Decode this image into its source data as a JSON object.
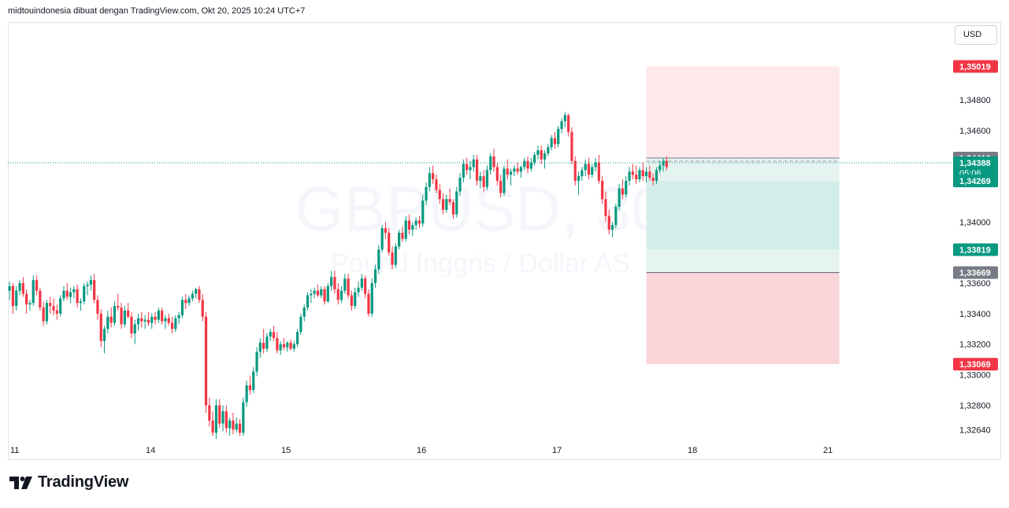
{
  "header": {
    "text": "midtouindonesia dibuat dengan TradingView.com, Okt 20, 2025 10:24 UTC+7"
  },
  "toolbar": {
    "currency": "USD"
  },
  "footer": {
    "brand": "TradingView"
  },
  "watermark": {
    "symbol": "GBPUSD, 30",
    "description": "Pound Inggris / Dollar AS"
  },
  "colors": {
    "up": "#089981",
    "down": "#f23645",
    "profit_zone": "#d3ede8",
    "profit_zone_light": "#e6f4f1",
    "loss_zone": "#fde9ea",
    "loss_zone_strong": "#fad5d9",
    "grid_text": "#131722",
    "label_gray": "#787b86"
  },
  "price_axis": {
    "ticks": [
      {
        "label": "1,34800",
        "value": 1.348
      },
      {
        "label": "1,34600",
        "value": 1.346
      },
      {
        "label": "1,34000",
        "value": 1.34
      },
      {
        "label": "1,33600",
        "value": 1.336
      },
      {
        "label": "1,33400",
        "value": 1.334
      },
      {
        "label": "1,33200",
        "value": 1.332
      },
      {
        "label": "1,33000",
        "value": 1.33
      },
      {
        "label": "1,32800",
        "value": 1.328
      },
      {
        "label": "1,32640",
        "value": 1.3264
      }
    ],
    "labels": [
      {
        "text": "1,35019",
        "value": 1.35019,
        "color": "#f23645"
      },
      {
        "text": "1,34419",
        "value": 1.34419,
        "color": "#787b86"
      },
      {
        "text": "1,34388",
        "value": 1.34388,
        "color": "#089981",
        "sub": "05:06"
      },
      {
        "text": "1,34269",
        "value": 1.34269,
        "color": "#089981"
      },
      {
        "text": "1,33819",
        "value": 1.33819,
        "color": "#089981"
      },
      {
        "text": "1,33669",
        "value": 1.33669,
        "color": "#787b86"
      },
      {
        "text": "1,33069",
        "value": 1.33069,
        "color": "#f23645"
      }
    ]
  },
  "time_axis": {
    "ticks": [
      {
        "label": "11",
        "bar": 0
      },
      {
        "label": "14",
        "bar": 40
      },
      {
        "label": "15",
        "bar": 80
      },
      {
        "label": "16",
        "bar": 120
      },
      {
        "label": "17",
        "bar": 160
      },
      {
        "label": "18",
        "bar": 200
      },
      {
        "label": "21",
        "bar": 240
      }
    ]
  },
  "chart_data": {
    "type": "candlestick",
    "symbol": "GBPUSD",
    "timeframe": "30",
    "ylim": [
      1.3257,
      1.3531
    ],
    "current_price": 1.34388,
    "position_tool": {
      "entry": 1.34419,
      "stop_loss": 1.33669,
      "target": 1.34269,
      "upper": 1.35019,
      "lower": 1.33069,
      "secondary": 1.33819,
      "start_bar": 188,
      "end_bar": 245
    },
    "candles": [
      [
        1.3355,
        1.3361,
        1.3349,
        1.3358
      ],
      [
        1.3358,
        1.336,
        1.334,
        1.3345
      ],
      [
        1.3345,
        1.3358,
        1.3342,
        1.3355
      ],
      [
        1.3355,
        1.3362,
        1.3352,
        1.336
      ],
      [
        1.336,
        1.3364,
        1.3351,
        1.3353
      ],
      [
        1.3353,
        1.3356,
        1.334,
        1.3346
      ],
      [
        1.3346,
        1.3349,
        1.3342,
        1.3347
      ],
      [
        1.3347,
        1.3365,
        1.3345,
        1.3362
      ],
      [
        1.3362,
        1.3365,
        1.3352,
        1.3355
      ],
      [
        1.3355,
        1.3357,
        1.3342,
        1.3344
      ],
      [
        1.3344,
        1.3348,
        1.3332,
        1.3335
      ],
      [
        1.3335,
        1.3349,
        1.3333,
        1.3347
      ],
      [
        1.3347,
        1.3351,
        1.334,
        1.3345
      ],
      [
        1.3345,
        1.335,
        1.3339,
        1.3342
      ],
      [
        1.3342,
        1.3346,
        1.3336,
        1.334
      ],
      [
        1.334,
        1.3352,
        1.3338,
        1.335
      ],
      [
        1.335,
        1.3358,
        1.3348,
        1.3355
      ],
      [
        1.3355,
        1.336,
        1.3349,
        1.3351
      ],
      [
        1.3351,
        1.3357,
        1.3347,
        1.3354
      ],
      [
        1.3354,
        1.3358,
        1.335,
        1.3356
      ],
      [
        1.3356,
        1.3359,
        1.3344,
        1.3347
      ],
      [
        1.3347,
        1.335,
        1.3342,
        1.3348
      ],
      [
        1.3348,
        1.336,
        1.3346,
        1.3358
      ],
      [
        1.3358,
        1.3361,
        1.3352,
        1.3359
      ],
      [
        1.3359,
        1.3365,
        1.3355,
        1.3362
      ],
      [
        1.3362,
        1.3366,
        1.3347,
        1.3349
      ],
      [
        1.3349,
        1.3352,
        1.3336,
        1.334
      ],
      [
        1.334,
        1.3343,
        1.3318,
        1.3322
      ],
      [
        1.3322,
        1.3332,
        1.3314,
        1.333
      ],
      [
        1.333,
        1.3342,
        1.3327,
        1.3338
      ],
      [
        1.3338,
        1.3344,
        1.3331,
        1.3334
      ],
      [
        1.3334,
        1.3348,
        1.3332,
        1.3345
      ],
      [
        1.3345,
        1.3353,
        1.3342,
        1.3344
      ],
      [
        1.3344,
        1.3347,
        1.333,
        1.3333
      ],
      [
        1.3333,
        1.3345,
        1.3331,
        1.3342
      ],
      [
        1.3342,
        1.3347,
        1.3337,
        1.3338
      ],
      [
        1.3338,
        1.3341,
        1.3324,
        1.3327
      ],
      [
        1.3327,
        1.3336,
        1.332,
        1.3333
      ],
      [
        1.3333,
        1.334,
        1.3329,
        1.3337
      ],
      [
        1.3337,
        1.3341,
        1.3331,
        1.3335
      ],
      [
        1.3335,
        1.3339,
        1.333,
        1.3336
      ],
      [
        1.3336,
        1.3341,
        1.3332,
        1.3334
      ],
      [
        1.3334,
        1.334,
        1.333,
        1.3338
      ],
      [
        1.3338,
        1.3341,
        1.3333,
        1.3336
      ],
      [
        1.3336,
        1.3344,
        1.3334,
        1.3342
      ],
      [
        1.3342,
        1.3344,
        1.3333,
        1.3335
      ],
      [
        1.3335,
        1.3339,
        1.333,
        1.3337
      ],
      [
        1.3337,
        1.334,
        1.3332,
        1.3334
      ],
      [
        1.3334,
        1.3338,
        1.3327,
        1.333
      ],
      [
        1.333,
        1.3339,
        1.3328,
        1.3337
      ],
      [
        1.3337,
        1.3341,
        1.3333,
        1.3339
      ],
      [
        1.3339,
        1.3351,
        1.3337,
        1.3349
      ],
      [
        1.3349,
        1.3353,
        1.3343,
        1.3347
      ],
      [
        1.3347,
        1.3352,
        1.3345,
        1.335
      ],
      [
        1.335,
        1.3355,
        1.3348,
        1.3353
      ],
      [
        1.3353,
        1.3357,
        1.335,
        1.3356
      ],
      [
        1.3356,
        1.3358,
        1.3347,
        1.3349
      ],
      [
        1.3349,
        1.3353,
        1.3335,
        1.3338
      ],
      [
        1.3338,
        1.3341,
        1.3275,
        1.328
      ],
      [
        1.328,
        1.3285,
        1.3266,
        1.327
      ],
      [
        1.327,
        1.3276,
        1.326,
        1.3262
      ],
      [
        1.3262,
        1.3284,
        1.3258,
        1.328
      ],
      [
        1.328,
        1.3284,
        1.3265,
        1.3268
      ],
      [
        1.3268,
        1.328,
        1.3263,
        1.3276
      ],
      [
        1.3276,
        1.328,
        1.3262,
        1.3265
      ],
      [
        1.3265,
        1.3272,
        1.326,
        1.327
      ],
      [
        1.327,
        1.3275,
        1.3261,
        1.3264
      ],
      [
        1.3264,
        1.3272,
        1.3262,
        1.3268
      ],
      [
        1.3268,
        1.3271,
        1.326,
        1.3262
      ],
      [
        1.3262,
        1.3285,
        1.326,
        1.3282
      ],
      [
        1.3282,
        1.3296,
        1.3279,
        1.3293
      ],
      [
        1.3293,
        1.3299,
        1.3287,
        1.329
      ],
      [
        1.329,
        1.3305,
        1.3288,
        1.3302
      ],
      [
        1.3302,
        1.3318,
        1.3299,
        1.3315
      ],
      [
        1.3315,
        1.3324,
        1.3311,
        1.3321
      ],
      [
        1.3321,
        1.333,
        1.3314,
        1.3317
      ],
      [
        1.3317,
        1.3327,
        1.3315,
        1.3325
      ],
      [
        1.3325,
        1.333,
        1.3322,
        1.3328
      ],
      [
        1.3328,
        1.3332,
        1.3322,
        1.3324
      ],
      [
        1.3324,
        1.3328,
        1.3314,
        1.3316
      ],
      [
        1.3316,
        1.3322,
        1.3313,
        1.332
      ],
      [
        1.332,
        1.3324,
        1.3316,
        1.3318
      ],
      [
        1.3318,
        1.3322,
        1.3315,
        1.3321
      ],
      [
        1.3321,
        1.3323,
        1.3316,
        1.3317
      ],
      [
        1.3317,
        1.3322,
        1.3315,
        1.332
      ],
      [
        1.332,
        1.333,
        1.3318,
        1.3328
      ],
      [
        1.3328,
        1.334,
        1.3326,
        1.3338
      ],
      [
        1.3338,
        1.3346,
        1.3335,
        1.3344
      ],
      [
        1.3344,
        1.3354,
        1.3342,
        1.3352
      ],
      [
        1.3352,
        1.3356,
        1.3347,
        1.3353
      ],
      [
        1.3353,
        1.3357,
        1.335,
        1.3355
      ],
      [
        1.3355,
        1.3359,
        1.3351,
        1.3352
      ],
      [
        1.3352,
        1.3358,
        1.335,
        1.3356
      ],
      [
        1.3356,
        1.3358,
        1.3346,
        1.3348
      ],
      [
        1.3348,
        1.336,
        1.3347,
        1.3358
      ],
      [
        1.3358,
        1.3368,
        1.3355,
        1.3364
      ],
      [
        1.3364,
        1.3368,
        1.3353,
        1.3356
      ],
      [
        1.3356,
        1.336,
        1.3346,
        1.3349
      ],
      [
        1.3349,
        1.3358,
        1.3347,
        1.3355
      ],
      [
        1.3355,
        1.3366,
        1.3353,
        1.3363
      ],
      [
        1.3363,
        1.3366,
        1.335,
        1.3352
      ],
      [
        1.3352,
        1.3355,
        1.3342,
        1.3345
      ],
      [
        1.3345,
        1.3357,
        1.3343,
        1.3354
      ],
      [
        1.3354,
        1.3361,
        1.3351,
        1.3357
      ],
      [
        1.3357,
        1.3366,
        1.3355,
        1.3363
      ],
      [
        1.3363,
        1.3365,
        1.335,
        1.3353
      ],
      [
        1.3353,
        1.3356,
        1.3338,
        1.334
      ],
      [
        1.334,
        1.3363,
        1.3338,
        1.336
      ],
      [
        1.336,
        1.3372,
        1.3357,
        1.3369
      ],
      [
        1.3369,
        1.3385,
        1.3366,
        1.3382
      ],
      [
        1.3382,
        1.3398,
        1.338,
        1.3396
      ],
      [
        1.3396,
        1.34,
        1.3389,
        1.3393
      ],
      [
        1.3393,
        1.3396,
        1.3378,
        1.338
      ],
      [
        1.338,
        1.3384,
        1.3369,
        1.3372
      ],
      [
        1.3372,
        1.3386,
        1.337,
        1.3384
      ],
      [
        1.3384,
        1.3395,
        1.3382,
        1.3393
      ],
      [
        1.3393,
        1.3397,
        1.3387,
        1.3389
      ],
      [
        1.3389,
        1.3404,
        1.3387,
        1.3401
      ],
      [
        1.3401,
        1.3405,
        1.3392,
        1.3395
      ],
      [
        1.3395,
        1.34,
        1.3391,
        1.3398
      ],
      [
        1.3398,
        1.3403,
        1.3395,
        1.3401
      ],
      [
        1.3401,
        1.3404,
        1.3396,
        1.3399
      ],
      [
        1.3399,
        1.3418,
        1.3397,
        1.3414
      ],
      [
        1.3414,
        1.3426,
        1.3411,
        1.3423
      ],
      [
        1.3423,
        1.3436,
        1.342,
        1.3432
      ],
      [
        1.3432,
        1.3437,
        1.3425,
        1.3428
      ],
      [
        1.3428,
        1.3431,
        1.3419,
        1.3421
      ],
      [
        1.3421,
        1.3425,
        1.3412,
        1.3415
      ],
      [
        1.3415,
        1.3419,
        1.3405,
        1.3408
      ],
      [
        1.3408,
        1.3418,
        1.3406,
        1.3415
      ],
      [
        1.3415,
        1.3422,
        1.3411,
        1.3413
      ],
      [
        1.3413,
        1.3415,
        1.3402,
        1.3405
      ],
      [
        1.3405,
        1.3423,
        1.3403,
        1.342
      ],
      [
        1.342,
        1.3432,
        1.3417,
        1.3429
      ],
      [
        1.3429,
        1.3441,
        1.3426,
        1.3438
      ],
      [
        1.3438,
        1.3442,
        1.3431,
        1.3434
      ],
      [
        1.3434,
        1.344,
        1.3428,
        1.3436
      ],
      [
        1.3436,
        1.3444,
        1.3433,
        1.3441
      ],
      [
        1.3441,
        1.3444,
        1.3424,
        1.3427
      ],
      [
        1.3427,
        1.3433,
        1.3422,
        1.343
      ],
      [
        1.343,
        1.3434,
        1.342,
        1.3423
      ],
      [
        1.3423,
        1.3437,
        1.3421,
        1.3434
      ],
      [
        1.3434,
        1.3445,
        1.3431,
        1.3443
      ],
      [
        1.3443,
        1.3448,
        1.3433,
        1.3436
      ],
      [
        1.3436,
        1.3439,
        1.3424,
        1.3427
      ],
      [
        1.3427,
        1.3431,
        1.3416,
        1.3419
      ],
      [
        1.3419,
        1.3437,
        1.3417,
        1.3435
      ],
      [
        1.3435,
        1.3441,
        1.3428,
        1.3431
      ],
      [
        1.3431,
        1.3435,
        1.3424,
        1.3433
      ],
      [
        1.3433,
        1.3437,
        1.343,
        1.3435
      ],
      [
        1.3435,
        1.3439,
        1.3431,
        1.3433
      ],
      [
        1.3433,
        1.3437,
        1.3429,
        1.3436
      ],
      [
        1.3436,
        1.3442,
        1.3434,
        1.344
      ],
      [
        1.344,
        1.3443,
        1.3432,
        1.3435
      ],
      [
        1.3435,
        1.3442,
        1.3433,
        1.3439
      ],
      [
        1.3439,
        1.3446,
        1.3437,
        1.3444
      ],
      [
        1.3444,
        1.345,
        1.3441,
        1.3447
      ],
      [
        1.3447,
        1.345,
        1.3438,
        1.3441
      ],
      [
        1.3441,
        1.3447,
        1.3435,
        1.3445
      ],
      [
        1.3445,
        1.3451,
        1.3443,
        1.3449
      ],
      [
        1.3449,
        1.3457,
        1.3447,
        1.3455
      ],
      [
        1.3455,
        1.3459,
        1.3448,
        1.3451
      ],
      [
        1.3451,
        1.3463,
        1.3449,
        1.3461
      ],
      [
        1.3461,
        1.3468,
        1.3458,
        1.3466
      ],
      [
        1.3466,
        1.3472,
        1.3462,
        1.347
      ],
      [
        1.347,
        1.3471,
        1.3456,
        1.3459
      ],
      [
        1.3459,
        1.3462,
        1.3438,
        1.344
      ],
      [
        1.344,
        1.3443,
        1.3424,
        1.3427
      ],
      [
        1.3427,
        1.3433,
        1.3418,
        1.343
      ],
      [
        1.343,
        1.3436,
        1.3427,
        1.3434
      ],
      [
        1.3434,
        1.3441,
        1.343,
        1.3438
      ],
      [
        1.3438,
        1.3442,
        1.3428,
        1.3431
      ],
      [
        1.3431,
        1.3438,
        1.3429,
        1.3436
      ],
      [
        1.3436,
        1.3442,
        1.3433,
        1.3439
      ],
      [
        1.3439,
        1.3444,
        1.3425,
        1.3427
      ],
      [
        1.3427,
        1.343,
        1.3412,
        1.3415
      ],
      [
        1.3415,
        1.342,
        1.34,
        1.3404
      ],
      [
        1.3404,
        1.3408,
        1.3392,
        1.3395
      ],
      [
        1.3395,
        1.34,
        1.339,
        1.3398
      ],
      [
        1.3398,
        1.3412,
        1.3396,
        1.341
      ],
      [
        1.341,
        1.3425,
        1.3408,
        1.3422
      ],
      [
        1.3422,
        1.3428,
        1.3415,
        1.3418
      ],
      [
        1.3418,
        1.343,
        1.3416,
        1.3427
      ],
      [
        1.3427,
        1.3436,
        1.3424,
        1.3433
      ],
      [
        1.3433,
        1.3438,
        1.3428,
        1.3431
      ],
      [
        1.3431,
        1.3437,
        1.3425,
        1.3428
      ],
      [
        1.3428,
        1.3436,
        1.3426,
        1.3434
      ],
      [
        1.3434,
        1.3439,
        1.3427,
        1.343
      ],
      [
        1.343,
        1.3436,
        1.3426,
        1.3433
      ],
      [
        1.3433,
        1.3437,
        1.3427,
        1.3429
      ],
      [
        1.3429,
        1.3432,
        1.3424,
        1.3427
      ],
      [
        1.3427,
        1.3436,
        1.3425,
        1.3434
      ],
      [
        1.3434,
        1.344,
        1.3432,
        1.3437
      ],
      [
        1.3437,
        1.3442,
        1.3433,
        1.344
      ],
      [
        1.344,
        1.3443,
        1.3434,
        1.3436
      ]
    ]
  }
}
